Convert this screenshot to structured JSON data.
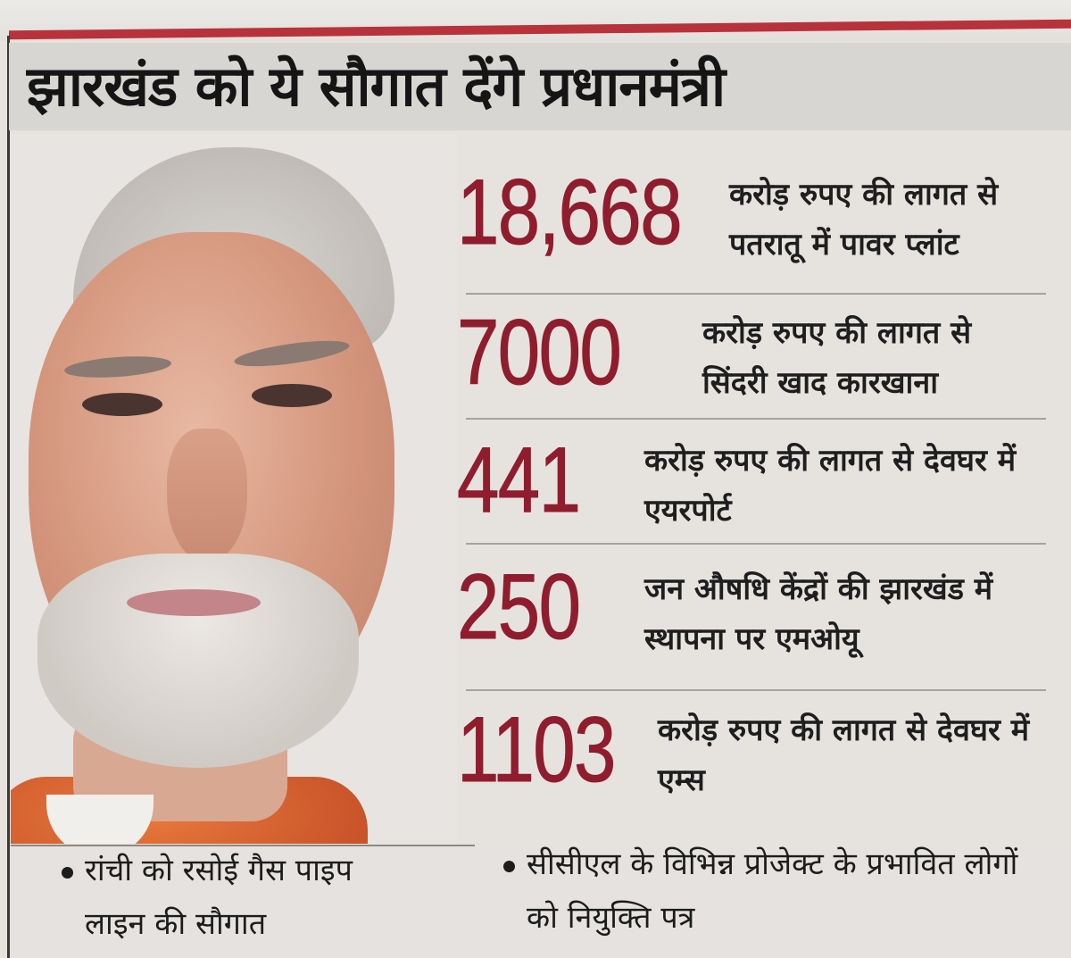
{
  "headline": "झारखंड को ये सौगात देंगे प्रधानमंत्री",
  "stats": [
    {
      "number": "18,668",
      "line1": "करोड़ रुपए की लागत से",
      "line2": "पतरातू में पावर प्लांट"
    },
    {
      "number": "7000",
      "line1": "करोड़ रुपए की लागत से",
      "line2": "सिंदरी खाद कारखाना"
    },
    {
      "number": "441",
      "line1": "करोड़ रुपए की लागत से देवघर में",
      "line2": "एयरपोर्ट"
    },
    {
      "number": "250",
      "line1": "जन औषधि केंद्रों की झारखंड में",
      "line2": "स्थापना पर एमओयू"
    },
    {
      "number": "1103",
      "line1": "करोड़ रुपए की लागत से देवघर में",
      "line2": "एम्स"
    }
  ],
  "bullets": [
    {
      "line1": "रांची को रसोई गैस पाइप",
      "line2": "लाइन की सौगात"
    },
    {
      "line1": "सीसीएल के विभिन्न प्रोजेक्ट के प्रभावित लोगों",
      "line2": "को नियुक्ति पत्र"
    }
  ],
  "colors": {
    "number": "#8f1d2d",
    "rule": "#b8323b"
  }
}
